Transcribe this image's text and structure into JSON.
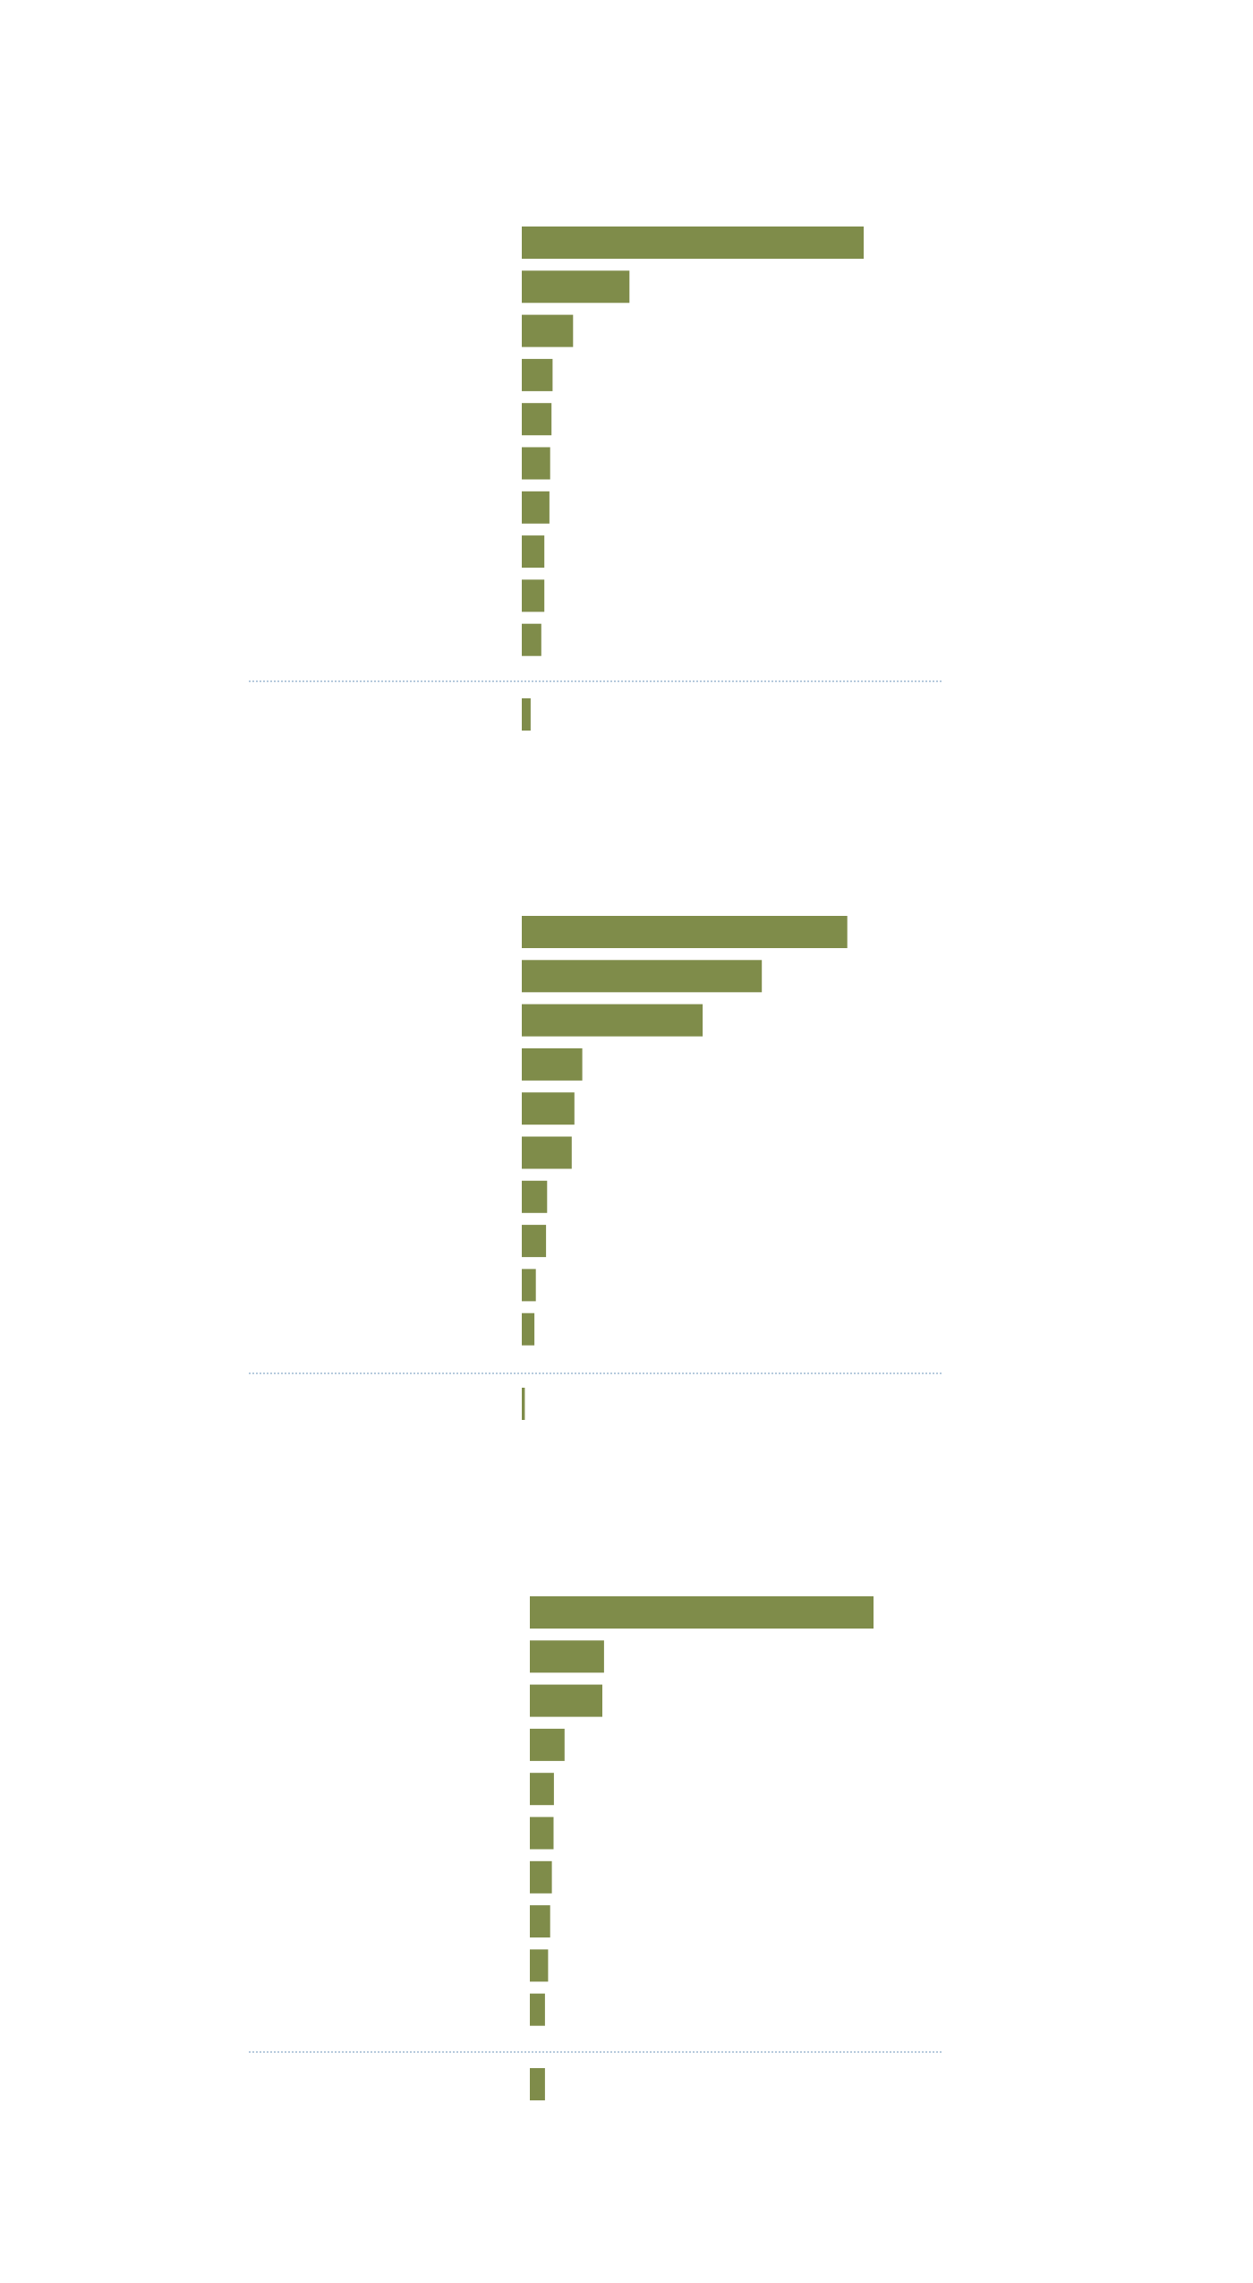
{
  "colors": {
    "bar": "#7f8c4a",
    "separator": "#9db8d2",
    "background": "#ffffff"
  },
  "chart_data": [
    {
      "type": "bar",
      "orientation": "horizontal",
      "grid": false,
      "legend": "none",
      "xlim": [
        0,
        100
      ],
      "values": [
        100,
        31.5,
        15,
        9,
        8.7,
        8.3,
        8.1,
        6.6,
        6.6,
        5.7
      ],
      "separated_values": [
        2.6
      ]
    },
    {
      "type": "bar",
      "orientation": "horizontal",
      "grid": false,
      "legend": "none",
      "xlim": [
        0,
        100
      ],
      "values": [
        95.2,
        70.2,
        52.9,
        17.7,
        15.4,
        14.6,
        7.4,
        7.1,
        4.1,
        3.7
      ],
      "separated_values": [
        0.9
      ]
    },
    {
      "type": "bar",
      "orientation": "horizontal",
      "grid": false,
      "legend": "none",
      "xlim": [
        0,
        100
      ],
      "values": [
        100,
        21.6,
        21.1,
        10.1,
        7,
        6.9,
        6.4,
        5.9,
        5.3,
        4.4
      ],
      "separated_values": [
        4.4
      ]
    }
  ]
}
